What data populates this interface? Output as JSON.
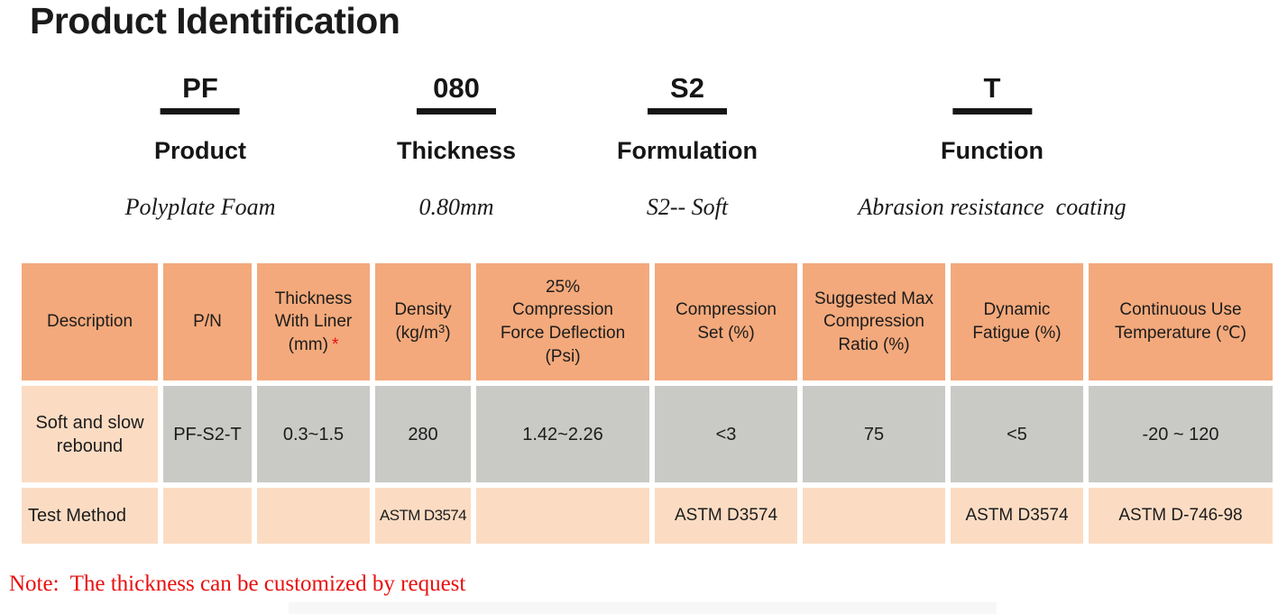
{
  "title": "Product Identification",
  "segments": [
    {
      "code": "PF",
      "label": "Product",
      "description": "Polyplate Foam"
    },
    {
      "code": "080",
      "label": "Thickness",
      "description": "0.80mm"
    },
    {
      "code": "S2",
      "label": "Formulation",
      "description": "S2-- Soft"
    },
    {
      "code": "T",
      "label": "Function",
      "description": "Abrasion resistance  coating"
    }
  ],
  "table": {
    "headers": [
      {
        "text": "Description"
      },
      {
        "text": "P/N"
      },
      {
        "text": "Thickness\nWith Liner\n(mm)",
        "asterisk": "*"
      },
      {
        "pre": "Density\n(kg/m",
        "sup": "3",
        "post": ")"
      },
      {
        "text": "25%\nCompression\nForce Deflection\n(Psi)"
      },
      {
        "text": "Compression\nSet (%)"
      },
      {
        "text": "Suggested Max\nCompression\nRatio (%)"
      },
      {
        "text": "Dynamic\nFatigue (%)"
      },
      {
        "text": "Continuous Use\nTemperature (℃)"
      }
    ],
    "product_row": [
      "Soft and slow\nrebound",
      "PF-S2-T",
      "0.3~1.5",
      "280",
      "1.42~2.26",
      "<3",
      "75",
      "<5",
      "-20 ~ 120"
    ],
    "test_row": [
      "Test Method",
      "",
      "",
      "ASTM D3574",
      "",
      "ASTM D3574",
      "",
      "ASTM D3574",
      "ASTM D-746-98"
    ]
  },
  "note": {
    "text": "Note:  The thickness can be customized by request"
  },
  "colors": {
    "header_bg": "#F3A97B",
    "cell_gray": "#C9CAC6",
    "cell_peach": "#FBDCC3",
    "accent_red": "#E8100F",
    "underline_black": "#161616"
  }
}
